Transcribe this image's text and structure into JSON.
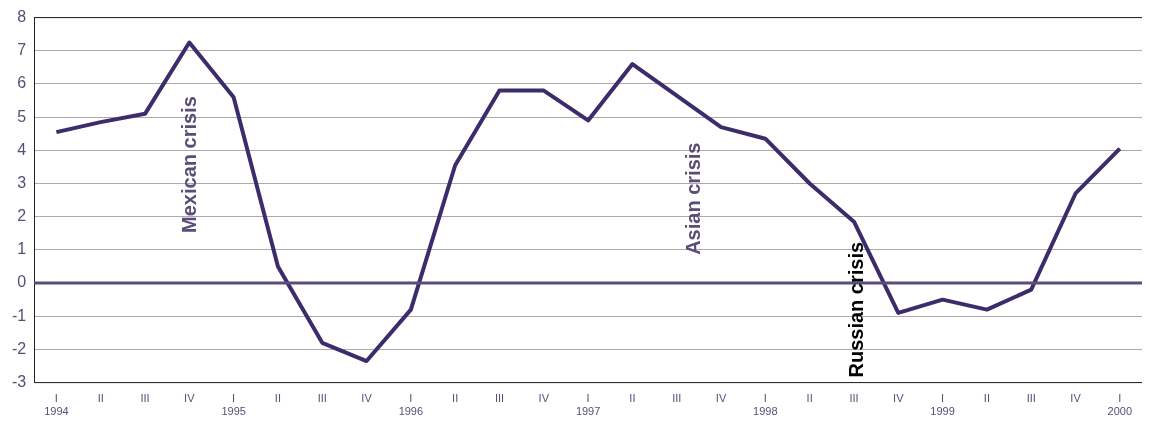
{
  "chart_data": {
    "type": "line",
    "categories": [
      "I\n1994",
      "II",
      "III",
      "IV",
      "I\n1995",
      "II",
      "III",
      "IV",
      "I\n1996",
      "II",
      "III",
      "IV",
      "I\n1997",
      "II",
      "III",
      "IV",
      "I\n1998",
      "II",
      "III",
      "IV",
      "I\n1999",
      "II",
      "III",
      "IV",
      "I\n2000"
    ],
    "series": [
      {
        "color": "#3d2c6b",
        "values": [
          4.55,
          4.85,
          5.1,
          7.25,
          5.6,
          0.5,
          -1.8,
          -2.35,
          -0.8,
          3.55,
          5.8,
          5.8,
          4.9,
          6.6,
          5.65,
          4.7,
          4.35,
          3.0,
          1.85,
          -0.9,
          -0.5,
          -0.8,
          -0.2,
          2.7,
          4.05
        ]
      }
    ],
    "ylim": [
      -3,
      8
    ],
    "yticks": [
      -3,
      -2,
      -1,
      0,
      1,
      2,
      3,
      4,
      5,
      6,
      7,
      8
    ],
    "grid": "y",
    "legend": false,
    "marker": "none",
    "line_style": "solid",
    "ref_lines": [
      {
        "axis": "y",
        "value": 0,
        "color": "#5a4d78"
      }
    ],
    "annotations": [
      "Mexican crisis",
      "Asian crisis",
      "Russian crisis"
    ]
  }
}
